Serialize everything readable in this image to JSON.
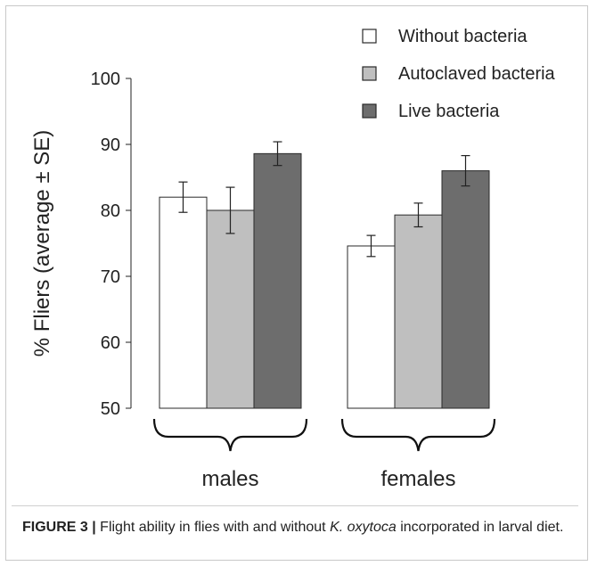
{
  "chart_data": {
    "type": "bar",
    "categories": [
      "males",
      "females"
    ],
    "ylabel": "% Fliers (average ± SE)",
    "ylim": [
      50,
      100
    ],
    "yticks": [
      50,
      60,
      70,
      80,
      90,
      100
    ],
    "legend_position": "top-right",
    "series": [
      {
        "name": "Without bacteria",
        "values": [
          82.0,
          74.6
        ],
        "errors": [
          2.3,
          1.6
        ],
        "color": "#ffffff"
      },
      {
        "name": "Autoclaved bacteria",
        "values": [
          80.0,
          79.3
        ],
        "errors": [
          3.5,
          1.8
        ],
        "color": "#bfbfbf"
      },
      {
        "name": "Live bacteria",
        "values": [
          88.6,
          86.0
        ],
        "errors": [
          1.8,
          2.3
        ],
        "color": "#6d6d6d"
      }
    ]
  },
  "caption": {
    "label": "FIGURE 3 |",
    "text_before": " Flight ability in flies with and without ",
    "italic": "K. oxytoca",
    "text_after": " incorporated in larval diet."
  }
}
